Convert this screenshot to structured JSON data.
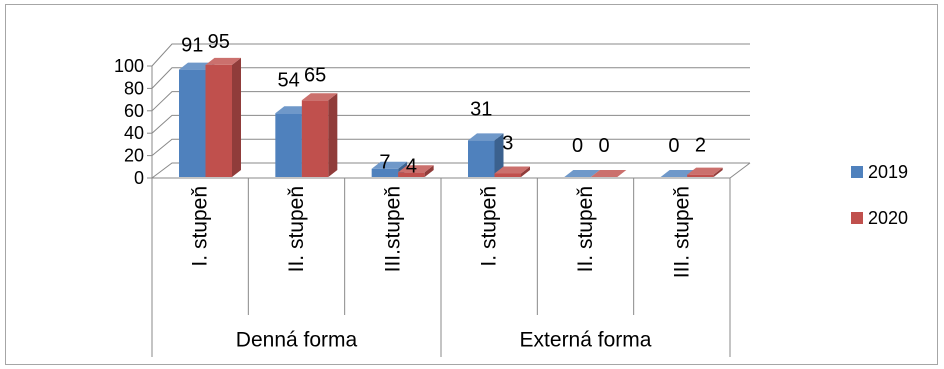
{
  "chart_data": {
    "type": "bar",
    "style": "3d-clustered-column",
    "categories": [
      "I. stupeň",
      "II. stupeň",
      "III.stupeň",
      "I. stupeň",
      "II. stupeň",
      "III. stupeň"
    ],
    "category_groups": [
      {
        "label": "Denná forma",
        "count": 3
      },
      {
        "label": "Externá forma",
        "count": 3
      }
    ],
    "series": [
      {
        "name": "2019",
        "values": [
          91,
          54,
          7,
          31,
          0,
          0
        ],
        "color": "#4F81BD"
      },
      {
        "name": "2020",
        "values": [
          95,
          65,
          4,
          3,
          0,
          2
        ],
        "color": "#C0504D"
      }
    ],
    "ylim": [
      0,
      100
    ],
    "yticks": [
      0,
      20,
      40,
      60,
      80,
      100
    ],
    "grid": true,
    "data_labels": true,
    "legend": "right"
  }
}
